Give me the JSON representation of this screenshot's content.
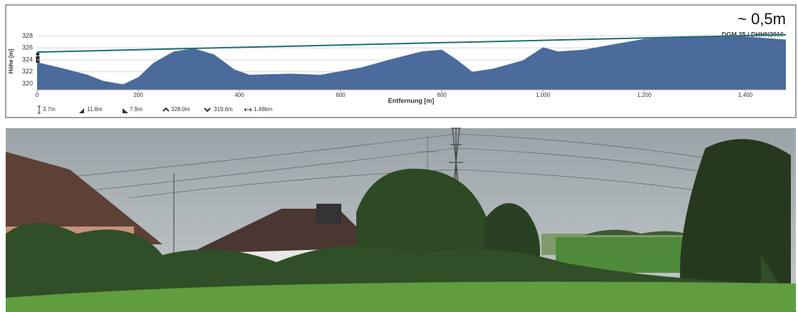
{
  "chart_data": {
    "type": "area",
    "annotation": "~ 0,5m",
    "source": "DGM 25 / DHHN2016",
    "xlabel": "Entfernung [m]",
    "ylabel": "Höhe [m]",
    "color": "#4a6b9c",
    "x": [
      0,
      50,
      100,
      130,
      170,
      200,
      230,
      270,
      310,
      350,
      390,
      420,
      500,
      560,
      640,
      700,
      760,
      800,
      830,
      860,
      900,
      960,
      1000,
      1030,
      1080,
      1140,
      1200,
      1300,
      1400,
      1480
    ],
    "values": [
      323.6,
      322.6,
      321.5,
      320.5,
      319.9,
      321.1,
      323.5,
      325.4,
      325.9,
      324.9,
      322.4,
      321.5,
      321.7,
      321.5,
      322.7,
      324.1,
      325.4,
      325.7,
      324.0,
      322.0,
      322.5,
      323.9,
      326.1,
      325.4,
      325.7,
      326.6,
      327.5,
      327.9,
      327.9,
      327.4
    ],
    "sightline": {
      "color": "#1f6f73",
      "x": [
        0,
        1480
      ],
      "values": [
        325.3,
        328.2
      ]
    },
    "xlim": [
      0,
      1480
    ],
    "ylim": [
      319,
      329
    ],
    "xticks": [
      0,
      200,
      400,
      600,
      800,
      {
        "value": 1000,
        "label": "1,000"
      },
      {
        "value": 1200,
        "label": "1,200"
      },
      {
        "value": 1400,
        "label": "1,400"
      }
    ],
    "yticks": [
      320,
      322,
      324,
      326,
      328
    ],
    "grid": true,
    "stats": [
      "3.7m",
      "11.8m",
      "7.9m",
      "328.0m",
      "319.6m",
      "1.48km"
    ]
  }
}
